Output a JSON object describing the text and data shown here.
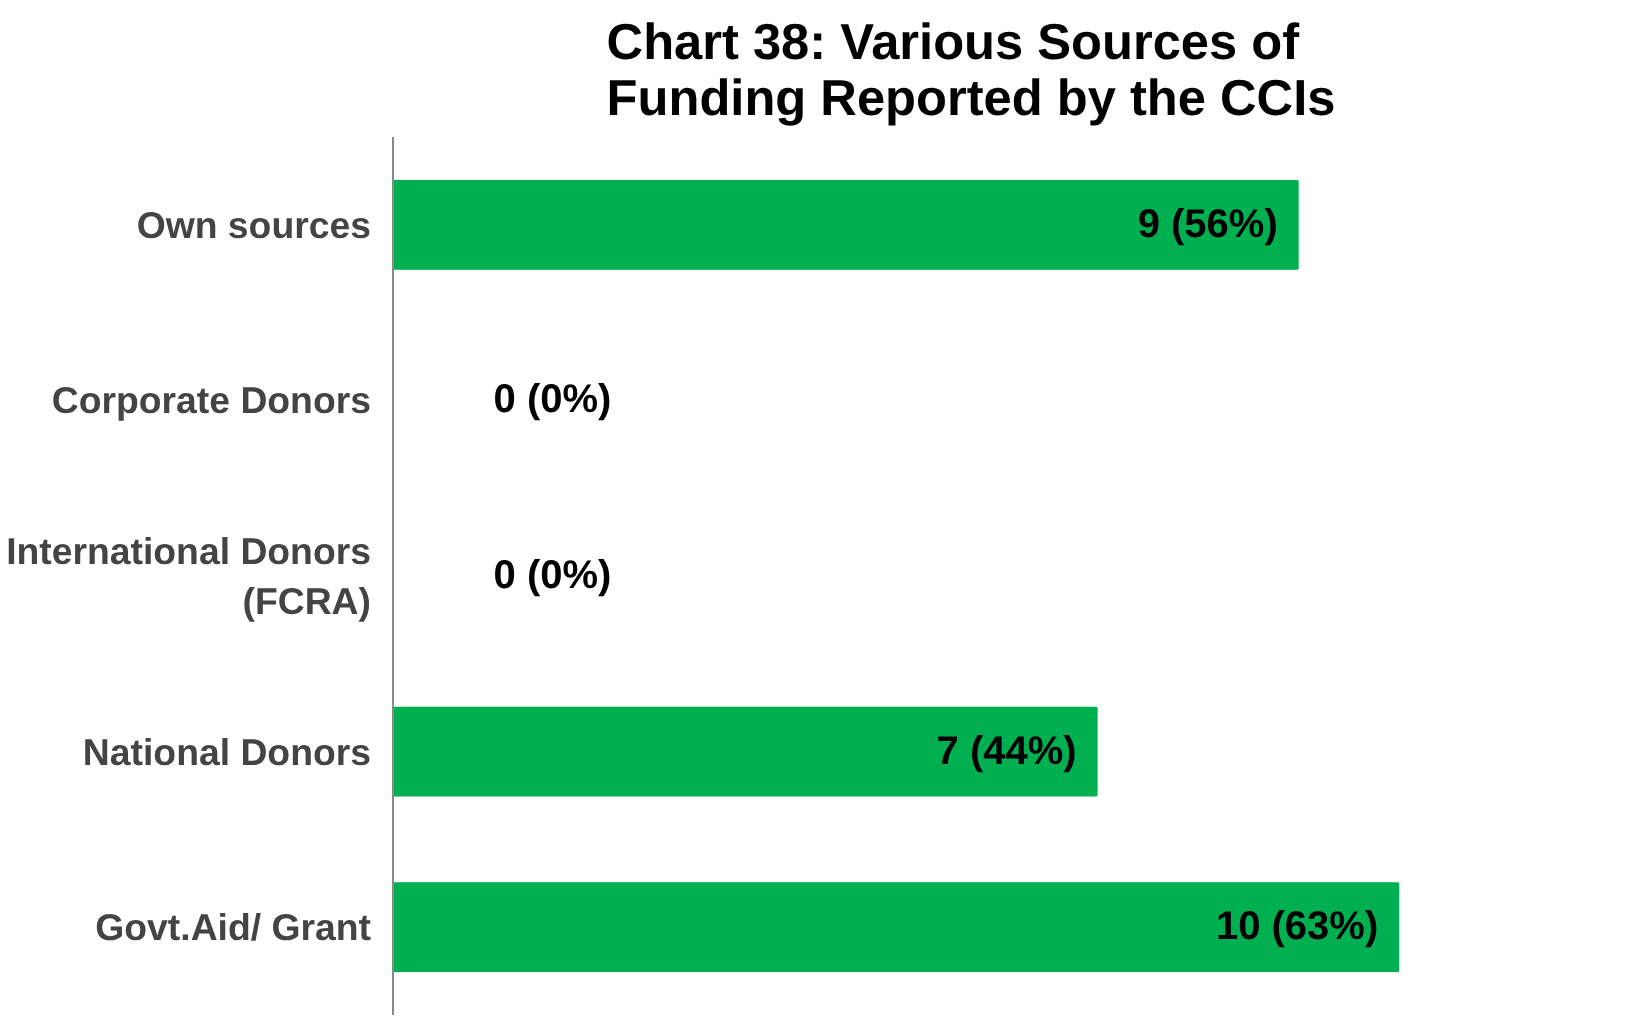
{
  "chart_data": {
    "type": "bar",
    "orientation": "horizontal",
    "title": "Chart 38: Various Sources of Funding Reported by the CCIs",
    "categories": [
      "Own sources",
      "Corporate Donors",
      "International Donors (FCRA)",
      "National Donors",
      "Govt.Aid/ Grant"
    ],
    "values": [
      9,
      0,
      0,
      7,
      10
    ],
    "color": "#00b050",
    "value_labels": [
      "9 (56%)",
      "0 (0%)",
      "0 (0%)",
      "7 (44%)",
      "10 (63%)"
    ],
    "grid": false
  }
}
